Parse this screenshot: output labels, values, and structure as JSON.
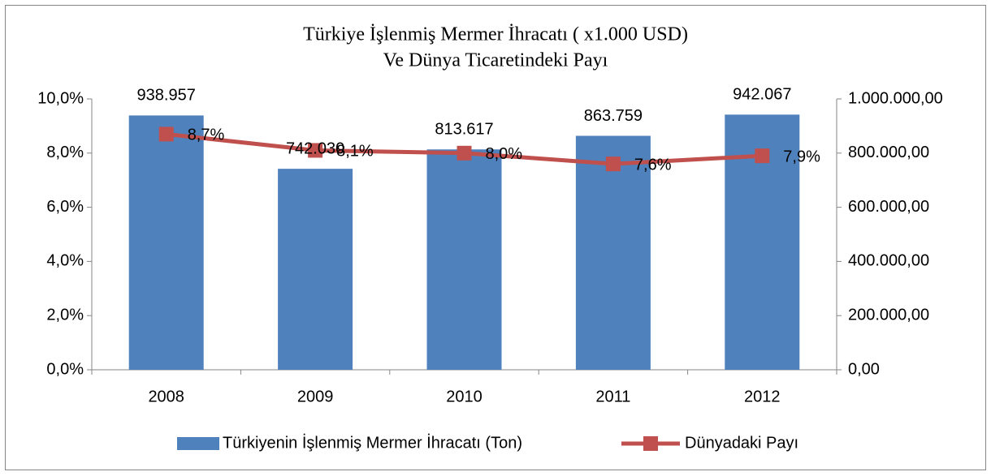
{
  "chart_data": {
    "type": "combo",
    "title": [
      "Türkiye İşlenmiş Mermer İhracatı ( x1.000 USD)",
      "Ve Dünya Ticaretindeki Payı"
    ],
    "categories": [
      "2008",
      "2009",
      "2010",
      "2011",
      "2012"
    ],
    "series": [
      {
        "name": "Türkiyenin İşlenmiş Mermer İhracatı (Ton)",
        "type": "bar",
        "axis": "y2",
        "color": "#4f81bd",
        "values": [
          938957,
          742030,
          813617,
          863759,
          942067
        ],
        "value_labels": [
          "938.957",
          "742.030",
          "813.617",
          "863.759",
          "942.067"
        ]
      },
      {
        "name": "Dünyadaki Payı",
        "type": "line",
        "axis": "y",
        "color": "#c0504d",
        "values": [
          8.7,
          8.1,
          8.0,
          7.6,
          7.9
        ],
        "value_labels": [
          "8,7%",
          "8,1%",
          "8,0%",
          "7,6%",
          "7,9%"
        ]
      }
    ],
    "ylim": [
      0,
      10
    ],
    "yticks": [
      {
        "value": 0,
        "label": "0,0%"
      },
      {
        "value": 2,
        "label": "2,0%"
      },
      {
        "value": 4,
        "label": "4,0%"
      },
      {
        "value": 6,
        "label": "6,0%"
      },
      {
        "value": 8,
        "label": "8,0%"
      },
      {
        "value": 10,
        "label": "10,0%"
      }
    ],
    "y2lim": [
      0,
      1000000
    ],
    "y2ticks": [
      {
        "value": 0,
        "label": "0,00"
      },
      {
        "value": 200000,
        "label": "200.000,00"
      },
      {
        "value": 400000,
        "label": "400.000,00"
      },
      {
        "value": 600000,
        "label": "600.000,00"
      },
      {
        "value": 800000,
        "label": "800.000,00"
      },
      {
        "value": 1000000,
        "label": "1.000.000,00"
      }
    ],
    "legend": "bottom"
  }
}
